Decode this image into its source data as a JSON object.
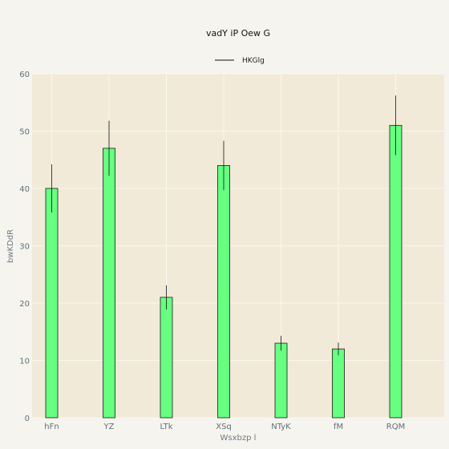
{
  "chart_data": {
    "type": "bar",
    "title": "vadY iP Oew G",
    "xlabel": "Wsxbzp l",
    "ylabel": "bwKDdR",
    "categories": [
      "hFn",
      "YZ",
      "LTk",
      "XSq",
      "NTyK",
      "fM",
      "RQM"
    ],
    "series": [
      {
        "name": "HKGlg",
        "values": [
          40,
          47,
          21,
          44,
          13,
          12,
          51
        ],
        "errors": [
          4.2,
          4.8,
          2.1,
          4.3,
          1.3,
          1.1,
          5.2
        ]
      }
    ],
    "ylim": [
      0,
      60
    ],
    "yticks": [
      0,
      10,
      20,
      30,
      40,
      50,
      60
    ],
    "grid": true,
    "legend_position": "top-center",
    "colors": {
      "bar_fill": "#66ff80",
      "bar_stroke": "#1a1a1a",
      "plot_background": "#f2ead8",
      "page_background": "#f6f4ef",
      "grid": "#fbf7ee"
    }
  }
}
